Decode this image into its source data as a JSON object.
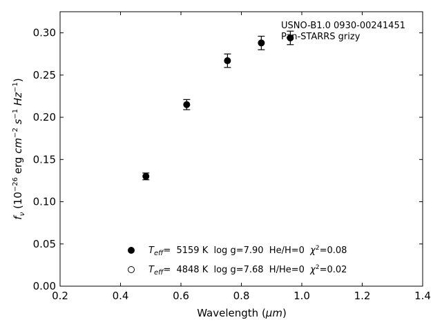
{
  "chart_data": {
    "type": "scatter",
    "xlabel_prefix": "Wavelength (",
    "xlabel_unit": "μm",
    "xlabel_suffix": ")",
    "ylabel_f": "f",
    "ylabel_nu": "ν",
    "ylabel_open": " (10",
    "ylabel_exp1": "−26",
    "ylabel_erg": " erg ",
    "ylabel_cm": "cm",
    "ylabel_exp2": "−2",
    "ylabel_s": " s",
    "ylabel_exp3": "−1",
    "ylabel_hz": "Hz",
    "ylabel_exp4": "−1",
    "ylabel_close": ")",
    "xlim": [
      0.2,
      1.4
    ],
    "ylim": [
      0.0,
      0.325
    ],
    "xticks": [
      0.2,
      0.4,
      0.6,
      0.8,
      1.0,
      1.2,
      1.4
    ],
    "xtick_labels": [
      "0.2",
      "0.4",
      "0.6",
      "0.8",
      "1.0",
      "1.2",
      "1.4"
    ],
    "yticks": [
      0.0,
      0.05,
      0.1,
      0.15,
      0.2,
      0.25,
      0.3
    ],
    "ytick_labels": [
      "0.00",
      "0.05",
      "0.10",
      "0.15",
      "0.20",
      "0.25",
      "0.30"
    ],
    "annotation_line1": "USNO-B1.0 0930-00241451",
    "annotation_line2": "Pan-STARRS grizy",
    "points": [
      {
        "x": 0.484,
        "y": 0.13,
        "err": 0.004
      },
      {
        "x": 0.619,
        "y": 0.215,
        "err": 0.006
      },
      {
        "x": 0.754,
        "y": 0.267,
        "err": 0.008
      },
      {
        "x": 0.866,
        "y": 0.288,
        "err": 0.008
      },
      {
        "x": 0.962,
        "y": 0.294,
        "err": 0.008
      }
    ],
    "legend": [
      {
        "marker": "filled",
        "teff_T": "T",
        "teff_sub": "eff",
        "teff_value": "=  5159 K  log g=7.90  He/H=0  ",
        "chi_symbol": "χ",
        "chi_exp": "2",
        "chi_value": "=0.08"
      },
      {
        "marker": "open",
        "teff_T": "T",
        "teff_sub": "eff",
        "teff_value": "=  4848 K  log g=7.68  H/He=0  ",
        "chi_symbol": "χ",
        "chi_exp": "2",
        "chi_value": "=0.02"
      }
    ],
    "grid": false,
    "legend_placement": "bottom-center",
    "colors": {
      "marker": "#000000",
      "axes": "#000000",
      "background": "#ffffff"
    }
  }
}
